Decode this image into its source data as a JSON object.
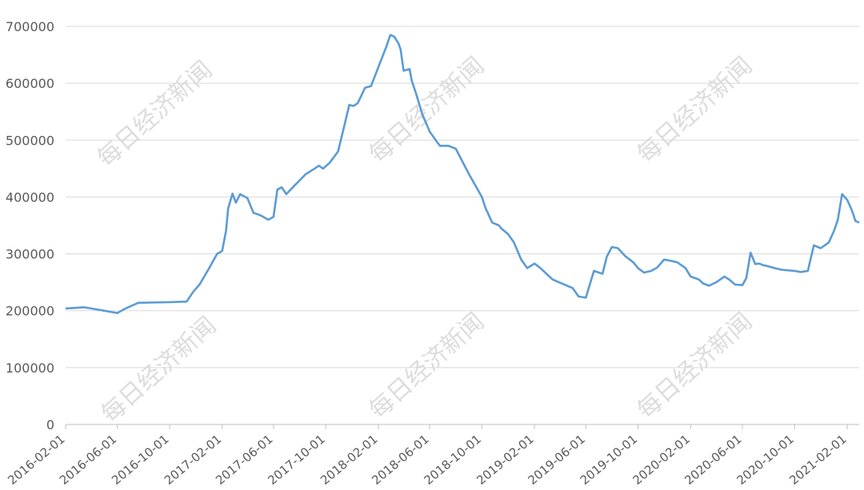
{
  "chart_data": {
    "type": "line",
    "title": "",
    "xlabel": "",
    "ylabel": "",
    "ylim": [
      0,
      700000
    ],
    "y_ticks": [
      "0",
      "100000",
      "200000",
      "300000",
      "400000",
      "500000",
      "600000",
      "700000"
    ],
    "x_ticks": [
      "2016-02-01",
      "2016-06-01",
      "2016-10-01",
      "2017-02-01",
      "2017-06-01",
      "2017-10-01",
      "2018-02-01",
      "2018-06-01",
      "2018-10-01",
      "2019-02-01",
      "2019-06-01",
      "2019-10-01",
      "2020-02-01",
      "2020-06-01",
      "2020-10-01",
      "2021-02-01"
    ],
    "grid": "horizontal",
    "watermark": "每日经济新闻",
    "colors": {
      "line": "#5b9bd5",
      "grid": "#d9d9d9",
      "axis": "#bfbfbf",
      "label": "#595959",
      "watermark": "#dcdcdc"
    },
    "series": [
      {
        "x": [
          "2016-02-01",
          "2016-03-15",
          "2016-05-01",
          "2016-06-01",
          "2016-06-20",
          "2016-07-20",
          "2016-10-01",
          "2016-11-10",
          "2016-11-25",
          "2016-12-10",
          "2017-01-01",
          "2017-01-20",
          "2017-02-01",
          "2017-02-10",
          "2017-02-15",
          "2017-02-25",
          "2017-03-05",
          "2017-03-15",
          "2017-04-01",
          "2017-04-15",
          "2017-05-01",
          "2017-05-20",
          "2017-06-01",
          "2017-06-10",
          "2017-06-20",
          "2017-07-01",
          "2017-07-20",
          "2017-08-15",
          "2017-09-01",
          "2017-09-15",
          "2017-09-25",
          "2017-10-10",
          "2017-10-30",
          "2017-11-15",
          "2017-11-25",
          "2017-12-05",
          "2017-12-15",
          "2018-01-01",
          "2018-01-15",
          "2018-02-01",
          "2018-02-20",
          "2018-03-01",
          "2018-03-10",
          "2018-03-20",
          "2018-03-25",
          "2018-04-01",
          "2018-04-15",
          "2018-04-20",
          "2018-05-01",
          "2018-05-15",
          "2018-06-01",
          "2018-06-15",
          "2018-06-25",
          "2018-07-05",
          "2018-07-15",
          "2018-08-01",
          "2018-09-01",
          "2018-10-01",
          "2018-10-10",
          "2018-10-25",
          "2018-11-10",
          "2018-11-15",
          "2018-12-01",
          "2018-12-15",
          "2019-01-01",
          "2019-01-15",
          "2019-02-01",
          "2019-02-15",
          "2019-03-01",
          "2019-03-15",
          "2019-04-15",
          "2019-05-01",
          "2019-05-15",
          "2019-06-01",
          "2019-06-20",
          "2019-07-10",
          "2019-07-20",
          "2019-08-01",
          "2019-08-15",
          "2019-09-01",
          "2019-09-20",
          "2019-10-01",
          "2019-10-15",
          "2019-11-01",
          "2019-11-15",
          "2019-12-01",
          "2019-12-15",
          "2020-01-01",
          "2020-01-20",
          "2020-02-01",
          "2020-02-20",
          "2020-03-01",
          "2020-03-15",
          "2020-04-01",
          "2020-04-20",
          "2020-05-01",
          "2020-05-15",
          "2020-06-01",
          "2020-06-10",
          "2020-06-20",
          "2020-07-01",
          "2020-07-10",
          "2020-07-20",
          "2020-08-01",
          "2020-08-15",
          "2020-09-01",
          "2020-10-01",
          "2020-10-15",
          "2020-11-01",
          "2020-11-15",
          "2020-12-01",
          "2020-12-20",
          "2021-01-01",
          "2021-01-10",
          "2021-01-20",
          "2021-02-01",
          "2021-02-10",
          "2021-02-15",
          "2021-02-20",
          "2021-03-01"
        ],
        "values": [
          204000,
          206000,
          200000,
          196000,
          204000,
          214000,
          215000,
          216000,
          233000,
          246000,
          274000,
          300000,
          305000,
          340000,
          380000,
          406000,
          390000,
          405000,
          398000,
          372000,
          368000,
          360000,
          365000,
          413000,
          417000,
          405000,
          420000,
          440000,
          448000,
          455000,
          450000,
          460000,
          480000,
          530000,
          562000,
          560000,
          565000,
          592000,
          595000,
          628000,
          665000,
          685000,
          682000,
          670000,
          660000,
          622000,
          625000,
          605000,
          580000,
          545000,
          515000,
          500000,
          490000,
          490000,
          490000,
          485000,
          440000,
          400000,
          380000,
          355000,
          350000,
          345000,
          335000,
          320000,
          290000,
          275000,
          283000,
          275000,
          265000,
          255000,
          245000,
          240000,
          225000,
          223000,
          270000,
          265000,
          295000,
          312000,
          310000,
          296000,
          285000,
          275000,
          267000,
          270000,
          276000,
          290000,
          288000,
          285000,
          275000,
          260000,
          255000,
          248000,
          244000,
          250000,
          260000,
          255000,
          246000,
          245000,
          257000,
          302000,
          282000,
          283000,
          280000,
          278000,
          275000,
          272000,
          270000,
          268000,
          270000,
          315000,
          310000,
          320000,
          340000,
          360000,
          405000,
          395000,
          380000,
          370000,
          358000,
          355000
        ]
      }
    ]
  }
}
